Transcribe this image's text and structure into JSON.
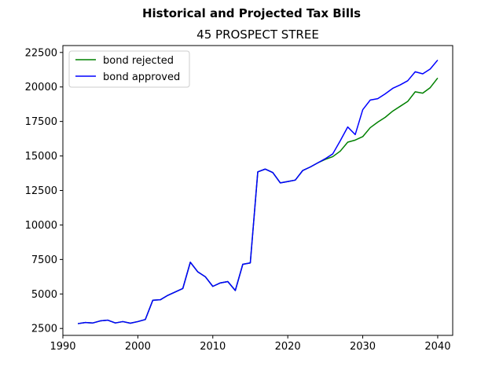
{
  "chart_data": {
    "type": "line",
    "suptitle": "Historical and Projected Tax Bills",
    "title": "45 PROSPECT STREE",
    "xlabel": "",
    "ylabel": "",
    "xlim": [
      1990,
      2042
    ],
    "ylim": [
      2000,
      23000
    ],
    "xticks": [
      1990,
      2000,
      2010,
      2020,
      2030,
      2040
    ],
    "yticks": [
      2500,
      5000,
      7500,
      10000,
      12500,
      15000,
      17500,
      20000,
      22500
    ],
    "legend_position": "upper-left",
    "grid": false,
    "series": [
      {
        "name": "bond rejected",
        "color": "#008000",
        "x": [
          1992,
          1993,
          1994,
          1995,
          1996,
          1997,
          1998,
          1999,
          2000,
          2001,
          2002,
          2003,
          2004,
          2005,
          2006,
          2007,
          2008,
          2009,
          2010,
          2011,
          2012,
          2013,
          2014,
          2015,
          2016,
          2017,
          2018,
          2019,
          2020,
          2021,
          2022,
          2023,
          2024,
          2025,
          2026,
          2027,
          2028,
          2029,
          2030,
          2031,
          2032,
          2033,
          2034,
          2035,
          2036,
          2037,
          2038,
          2039,
          2040
        ],
        "values": [
          2850,
          2930,
          2900,
          3050,
          3100,
          2900,
          3000,
          2880,
          3000,
          3150,
          4550,
          4580,
          4900,
          5150,
          5400,
          7300,
          6600,
          6250,
          5550,
          5800,
          5900,
          5250,
          7150,
          7250,
          13850,
          14050,
          13800,
          13050,
          13150,
          13250,
          13950,
          14200,
          14500,
          14750,
          14950,
          15350,
          16000,
          16150,
          16400,
          17050,
          17450,
          17800,
          18250,
          18600,
          18950,
          19650,
          19550,
          19950,
          20650
        ]
      },
      {
        "name": "bond approved",
        "color": "#0000ff",
        "x": [
          1992,
          1993,
          1994,
          1995,
          1996,
          1997,
          1998,
          1999,
          2000,
          2001,
          2002,
          2003,
          2004,
          2005,
          2006,
          2007,
          2008,
          2009,
          2010,
          2011,
          2012,
          2013,
          2014,
          2015,
          2016,
          2017,
          2018,
          2019,
          2020,
          2021,
          2022,
          2023,
          2024,
          2025,
          2026,
          2027,
          2028,
          2029,
          2030,
          2031,
          2032,
          2033,
          2034,
          2035,
          2036,
          2037,
          2038,
          2039,
          2040
        ],
        "values": [
          2850,
          2930,
          2900,
          3050,
          3100,
          2900,
          3000,
          2880,
          3000,
          3150,
          4550,
          4580,
          4900,
          5150,
          5400,
          7300,
          6600,
          6250,
          5550,
          5800,
          5900,
          5250,
          7150,
          7250,
          13850,
          14050,
          13800,
          13050,
          13150,
          13250,
          13950,
          14200,
          14500,
          14800,
          15150,
          16100,
          17100,
          16550,
          18350,
          19050,
          19150,
          19500,
          19900,
          20150,
          20450,
          21100,
          20950,
          21300,
          21950
        ]
      }
    ]
  }
}
